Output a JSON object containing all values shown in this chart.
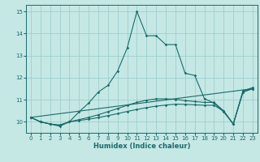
{
  "xlabel": "Humidex (Indice chaleur)",
  "background_color": "#c5e8e5",
  "grid_color": "#9ecece",
  "line_color": "#1a6b6b",
  "xlim": [
    -0.5,
    23.5
  ],
  "ylim": [
    9.5,
    15.3
  ],
  "yticks": [
    10,
    11,
    12,
    13,
    14,
    15
  ],
  "xticks": [
    0,
    1,
    2,
    3,
    4,
    5,
    6,
    7,
    8,
    9,
    10,
    11,
    12,
    13,
    14,
    15,
    16,
    17,
    18,
    19,
    20,
    21,
    22,
    23
  ],
  "main_x": [
    0,
    1,
    2,
    3,
    4,
    5,
    6,
    7,
    8,
    9,
    10,
    11,
    12,
    13,
    14,
    15,
    16,
    17,
    18,
    19,
    20,
    21,
    22,
    23
  ],
  "main_y": [
    10.2,
    10.0,
    9.9,
    9.8,
    10.0,
    10.45,
    10.85,
    11.35,
    11.65,
    12.3,
    13.35,
    15.0,
    13.9,
    13.9,
    13.5,
    13.5,
    12.2,
    12.1,
    11.05,
    10.85,
    10.45,
    9.9,
    11.4,
    11.55
  ],
  "trend1_x": [
    0,
    1,
    2,
    3,
    4,
    5,
    6,
    7,
    8,
    9,
    10,
    11,
    12,
    13,
    14,
    15,
    16,
    17,
    18,
    19,
    20,
    21,
    22,
    23
  ],
  "trend1_y": [
    10.2,
    10.0,
    9.9,
    9.85,
    10.0,
    10.06,
    10.12,
    10.19,
    10.28,
    10.37,
    10.47,
    10.56,
    10.64,
    10.71,
    10.76,
    10.8,
    10.79,
    10.77,
    10.75,
    10.75,
    10.48,
    9.9,
    11.35,
    11.5
  ],
  "trend2_x": [
    0,
    1,
    2,
    3,
    4,
    5,
    6,
    7,
    8,
    9,
    10,
    11,
    12,
    13,
    14,
    15,
    16,
    17,
    18,
    19,
    20,
    21,
    22,
    23
  ],
  "trend2_y": [
    10.2,
    10.0,
    9.9,
    9.85,
    10.0,
    10.1,
    10.2,
    10.32,
    10.46,
    10.6,
    10.75,
    10.88,
    10.98,
    11.04,
    11.04,
    11.02,
    10.96,
    10.92,
    10.88,
    10.88,
    10.5,
    9.9,
    11.35,
    11.5
  ],
  "line_x": [
    0,
    23
  ],
  "line_y": [
    10.2,
    11.5
  ]
}
